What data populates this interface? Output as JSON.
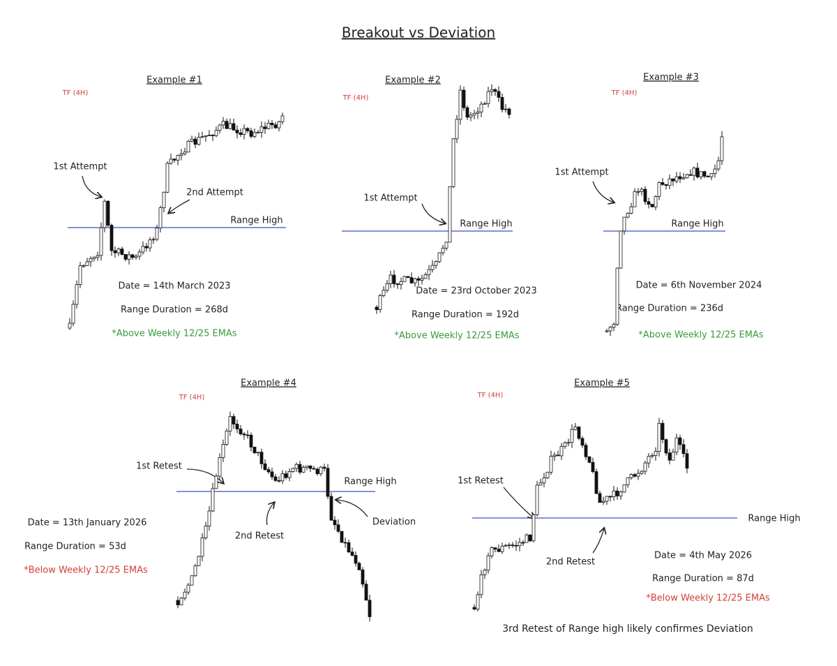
{
  "title": "Breakout vs Deviation",
  "examples": [
    {
      "label": "Example #1",
      "timeframe": "TF (4H)",
      "notes": [
        "1st Attempt",
        "2nd Attempt",
        "Range High"
      ],
      "date": "Date = 14th March 2023",
      "duration": "Range Duration = 268d",
      "ema": "*Above Weekly 12/25 EMAs"
    },
    {
      "label": "Example #2",
      "timeframe": "TF (4H)",
      "notes": [
        "1st Attempt",
        "Range High"
      ],
      "date": "Date = 23rd October 2023",
      "duration": "Range Duration = 192d",
      "ema": "*Above Weekly 12/25 EMAs"
    },
    {
      "label": "Example #3",
      "timeframe": "TF (4H)",
      "notes": [
        "1st Attempt",
        "Range High"
      ],
      "date": "Date = 6th November 2024",
      "duration": "Range Duration = 236d",
      "ema": "*Above Weekly 12/25 EMAs"
    },
    {
      "label": "Example #4",
      "timeframe": "TF (4H)",
      "notes": [
        "1st Retest",
        "Range High",
        "2nd Retest",
        "Deviation"
      ],
      "date": "Date = 13th January 2026",
      "duration": "Range Duration = 53d",
      "ema": "*Below Weekly 12/25 EMAs"
    },
    {
      "label": "Example #5",
      "timeframe": "TF (4H)",
      "notes": [
        "1st Retest",
        "Range High",
        "2nd Retest"
      ],
      "date": "Date = 4th May 2026",
      "duration": "Range Duration = 87d",
      "ema": "*Below Weekly 12/25 EMAs"
    }
  ],
  "footnote": "3rd Retest of Range high likely confirmes Deviation"
}
